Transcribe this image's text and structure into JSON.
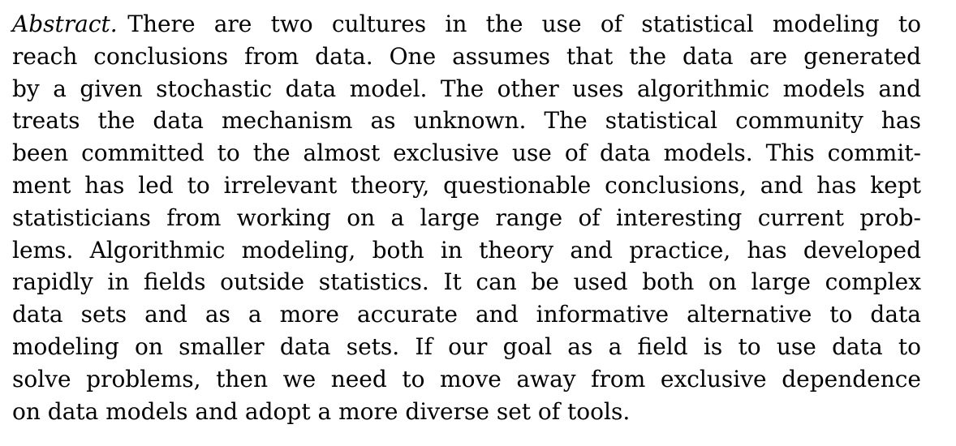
{
  "abstract": {
    "label": "Abstract.",
    "lines": [
      "There are two cultures in the use of statistical modeling to",
      "reach conclusions from data. One assumes that the data are generated",
      "by a given stochastic data model. The other uses algorithmic models and",
      "treats the data mechanism as unknown. The statistical community has",
      "been committed to the almost exclusive use of data models. This commit-",
      "ment has led to irrelevant theory, questionable conclusions, and has kept",
      "statisticians from working on a large range of interesting current prob-",
      "lems. Algorithmic modeling, both in theory and practice, has developed",
      "rapidly in fields outside statistics. It can be used both on large complex",
      "data sets and as a more accurate and informative alternative to data",
      "modeling on smaller data sets. If our goal as a field is to use data to",
      "solve problems, then we need to move away from exclusive dependence",
      "on data models and adopt a more diverse set of tools."
    ]
  }
}
